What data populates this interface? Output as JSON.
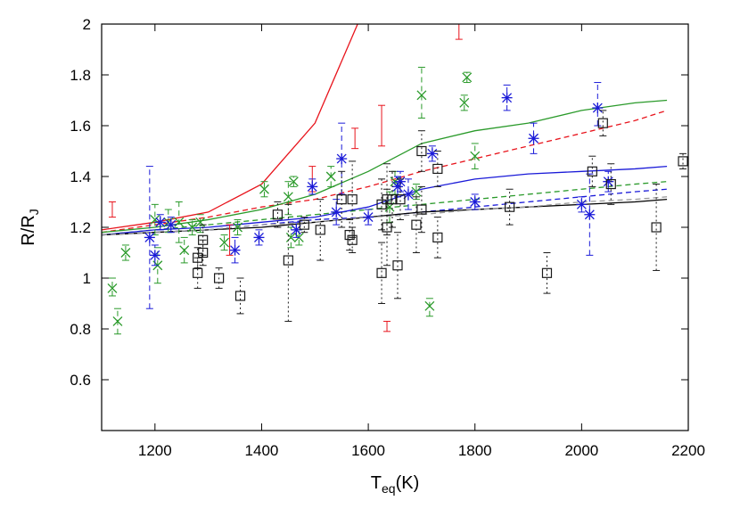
{
  "chart_data": {
    "type": "scatter",
    "xlabel": "T",
    "xlabel_sub": "eq",
    "xlabel_suffix": "(K)",
    "ylabel": "R/R",
    "ylabel_sub": "J",
    "xlim": [
      1100,
      2200
    ],
    "ylim": [
      0.4,
      2.0
    ],
    "xticks": [
      1200,
      1400,
      1600,
      1800,
      2000,
      2200
    ],
    "yticks": [
      0.6,
      0.8,
      1,
      1.2,
      1.4,
      1.6,
      1.8,
      2
    ],
    "ytick_labels": [
      "0.6",
      "0.8",
      "1",
      "1.2",
      "1.4",
      "1.6",
      "1.8",
      "2"
    ],
    "series": [
      {
        "marker": "errorbar",
        "color": "#e8141c",
        "dash": "solid",
        "points": [
          {
            "x": 1120,
            "y": 1.27,
            "lo": 1.24,
            "hi": 1.3
          },
          {
            "x": 1340,
            "y": 1.15,
            "lo": 1.09,
            "hi": 1.21
          },
          {
            "x": 1495,
            "y": 1.4,
            "lo": 1.34,
            "hi": 1.44
          },
          {
            "x": 1575,
            "y": 1.55,
            "lo": 1.51,
            "hi": 1.59
          },
          {
            "x": 1625,
            "y": 1.6,
            "lo": 1.52,
            "hi": 1.68
          },
          {
            "x": 1635,
            "y": 0.81,
            "lo": 0.79,
            "hi": 0.83
          },
          {
            "x": 1770,
            "y": 1.97,
            "lo": 1.94,
            "hi": 2.0
          }
        ]
      },
      {
        "marker": "x",
        "color": "#2a9a2a",
        "dash": "dashed",
        "points": [
          {
            "x": 1120,
            "y": 0.96,
            "lo": 0.93,
            "hi": 1.0
          },
          {
            "x": 1130,
            "y": 0.83,
            "lo": 0.78,
            "hi": 0.88
          },
          {
            "x": 1145,
            "y": 1.1,
            "lo": 1.07,
            "hi": 1.13
          },
          {
            "x": 1200,
            "y": 1.23,
            "lo": 1.17,
            "hi": 1.29
          },
          {
            "x": 1205,
            "y": 1.05,
            "lo": 0.98,
            "hi": 1.12
          },
          {
            "x": 1225,
            "y": 1.22,
            "lo": 1.18,
            "hi": 1.27
          },
          {
            "x": 1245,
            "y": 1.22,
            "lo": 1.14,
            "hi": 1.3
          },
          {
            "x": 1255,
            "y": 1.11,
            "lo": 1.06,
            "hi": 1.16
          },
          {
            "x": 1270,
            "y": 1.2,
            "lo": 1.17,
            "hi": 1.23
          },
          {
            "x": 1285,
            "y": 1.22,
            "lo": 1.18,
            "hi": 1.25
          },
          {
            "x": 1330,
            "y": 1.14,
            "lo": 1.11,
            "hi": 1.17
          },
          {
            "x": 1355,
            "y": 1.2,
            "lo": 1.17,
            "hi": 1.23
          },
          {
            "x": 1405,
            "y": 1.35,
            "lo": 1.32,
            "hi": 1.38
          },
          {
            "x": 1450,
            "y": 1.32,
            "lo": 1.25,
            "hi": 1.38
          },
          {
            "x": 1455,
            "y": 1.16,
            "lo": 1.12,
            "hi": 1.2
          },
          {
            "x": 1460,
            "y": 1.38,
            "lo": 1.36,
            "hi": 1.4
          },
          {
            "x": 1470,
            "y": 1.16,
            "lo": 1.13,
            "hi": 1.19
          },
          {
            "x": 1530,
            "y": 1.4,
            "lo": 1.36,
            "hi": 1.44
          },
          {
            "x": 1640,
            "y": 1.28,
            "lo": 1.22,
            "hi": 1.34
          },
          {
            "x": 1650,
            "y": 1.38,
            "lo": 1.33,
            "hi": 1.42
          },
          {
            "x": 1700,
            "y": 1.72,
            "lo": 1.63,
            "hi": 1.83
          },
          {
            "x": 1715,
            "y": 0.89,
            "lo": 0.85,
            "hi": 0.92
          },
          {
            "x": 1690,
            "y": 1.34,
            "lo": 1.31,
            "hi": 1.37
          },
          {
            "x": 1785,
            "y": 1.79,
            "lo": 1.77,
            "hi": 1.81
          },
          {
            "x": 1780,
            "y": 1.69,
            "lo": 1.66,
            "hi": 1.72
          },
          {
            "x": 1800,
            "y": 1.48,
            "lo": 1.43,
            "hi": 1.53
          }
        ]
      },
      {
        "marker": "star",
        "color": "#1a1ad8",
        "dash": "dashed",
        "points": [
          {
            "x": 1190,
            "y": 1.16,
            "lo": 0.88,
            "hi": 1.44
          },
          {
            "x": 1200,
            "y": 1.09,
            "lo": 1.05,
            "hi": 1.13
          },
          {
            "x": 1210,
            "y": 1.22,
            "lo": 1.19,
            "hi": 1.25
          },
          {
            "x": 1230,
            "y": 1.21,
            "lo": 1.18,
            "hi": 1.24
          },
          {
            "x": 1350,
            "y": 1.11,
            "lo": 1.06,
            "hi": 1.16
          },
          {
            "x": 1395,
            "y": 1.16,
            "lo": 1.13,
            "hi": 1.19
          },
          {
            "x": 1465,
            "y": 1.19,
            "lo": 1.16,
            "hi": 1.22
          },
          {
            "x": 1495,
            "y": 1.36,
            "lo": 1.33,
            "hi": 1.39
          },
          {
            "x": 1540,
            "y": 1.26,
            "lo": 1.21,
            "hi": 1.31
          },
          {
            "x": 1550,
            "y": 1.47,
            "lo": 1.33,
            "hi": 1.61
          },
          {
            "x": 1600,
            "y": 1.24,
            "lo": 1.21,
            "hi": 1.27
          },
          {
            "x": 1655,
            "y": 1.36,
            "lo": 1.32,
            "hi": 1.4
          },
          {
            "x": 1660,
            "y": 1.38,
            "lo": 1.34,
            "hi": 1.42
          },
          {
            "x": 1675,
            "y": 1.33,
            "lo": 1.27,
            "hi": 1.39
          },
          {
            "x": 1720,
            "y": 1.49,
            "lo": 1.46,
            "hi": 1.52
          },
          {
            "x": 1800,
            "y": 1.3,
            "lo": 1.27,
            "hi": 1.33
          },
          {
            "x": 1860,
            "y": 1.71,
            "lo": 1.66,
            "hi": 1.76
          },
          {
            "x": 1910,
            "y": 1.55,
            "lo": 1.49,
            "hi": 1.61
          },
          {
            "x": 2000,
            "y": 1.29,
            "lo": 1.26,
            "hi": 1.32
          },
          {
            "x": 2015,
            "y": 1.25,
            "lo": 1.09,
            "hi": 1.41
          },
          {
            "x": 2030,
            "y": 1.67,
            "lo": 1.6,
            "hi": 1.77
          },
          {
            "x": 2050,
            "y": 1.38,
            "lo": 1.34,
            "hi": 1.42
          }
        ]
      },
      {
        "marker": "square",
        "color": "#1a1a1a",
        "dash": "dotted",
        "points": [
          {
            "x": 1280,
            "y": 1.08,
            "lo": 1.04,
            "hi": 1.12
          },
          {
            "x": 1280,
            "y": 1.02,
            "lo": 0.96,
            "hi": 1.08
          },
          {
            "x": 1290,
            "y": 1.15,
            "lo": 1.09,
            "hi": 1.21
          },
          {
            "x": 1290,
            "y": 1.1,
            "lo": 1.05,
            "hi": 1.15
          },
          {
            "x": 1320,
            "y": 1.0,
            "lo": 0.96,
            "hi": 1.04
          },
          {
            "x": 1360,
            "y": 0.93,
            "lo": 0.86,
            "hi": 1.0
          },
          {
            "x": 1430,
            "y": 1.25,
            "lo": 1.2,
            "hi": 1.3
          },
          {
            "x": 1450,
            "y": 1.07,
            "lo": 0.83,
            "hi": 1.29
          },
          {
            "x": 1480,
            "y": 1.21,
            "lo": 1.18,
            "hi": 1.24
          },
          {
            "x": 1510,
            "y": 1.19,
            "lo": 1.07,
            "hi": 1.31
          },
          {
            "x": 1550,
            "y": 1.31,
            "lo": 1.2,
            "hi": 1.42
          },
          {
            "x": 1565,
            "y": 1.17,
            "lo": 1.11,
            "hi": 1.23
          },
          {
            "x": 1570,
            "y": 1.31,
            "lo": 1.16,
            "hi": 1.46
          },
          {
            "x": 1570,
            "y": 1.15,
            "lo": 1.1,
            "hi": 1.2
          },
          {
            "x": 1625,
            "y": 1.29,
            "lo": 1.19,
            "hi": 1.39
          },
          {
            "x": 1625,
            "y": 1.02,
            "lo": 0.9,
            "hi": 1.14
          },
          {
            "x": 1635,
            "y": 1.31,
            "lo": 1.17,
            "hi": 1.45
          },
          {
            "x": 1635,
            "y": 1.2,
            "lo": 1.05,
            "hi": 1.35
          },
          {
            "x": 1645,
            "y": 1.31,
            "lo": 1.2,
            "hi": 1.42
          },
          {
            "x": 1655,
            "y": 1.05,
            "lo": 0.92,
            "hi": 1.18
          },
          {
            "x": 1660,
            "y": 1.31,
            "lo": 1.23,
            "hi": 1.39
          },
          {
            "x": 1690,
            "y": 1.21,
            "lo": 1.1,
            "hi": 1.32
          },
          {
            "x": 1700,
            "y": 1.5,
            "lo": 1.42,
            "hi": 1.58
          },
          {
            "x": 1700,
            "y": 1.27,
            "lo": 1.18,
            "hi": 1.36
          },
          {
            "x": 1730,
            "y": 1.43,
            "lo": 1.36,
            "hi": 1.5
          },
          {
            "x": 1730,
            "y": 1.16,
            "lo": 1.08,
            "hi": 1.24
          },
          {
            "x": 1865,
            "y": 1.28,
            "lo": 1.21,
            "hi": 1.35
          },
          {
            "x": 1935,
            "y": 1.02,
            "lo": 0.94,
            "hi": 1.1
          },
          {
            "x": 2020,
            "y": 1.42,
            "lo": 1.36,
            "hi": 1.48
          },
          {
            "x": 2040,
            "y": 1.61,
            "lo": 1.56,
            "hi": 1.66
          },
          {
            "x": 2055,
            "y": 1.37,
            "lo": 1.29,
            "hi": 1.45
          },
          {
            "x": 2140,
            "y": 1.2,
            "lo": 1.03,
            "hi": 1.37
          },
          {
            "x": 2190,
            "y": 1.46,
            "lo": 1.43,
            "hi": 1.49
          }
        ]
      }
    ],
    "curves": [
      {
        "color": "#e8141c",
        "dash": "solid",
        "x": [
          1100,
          1200,
          1300,
          1400,
          1500,
          1580
        ],
        "y": [
          1.19,
          1.22,
          1.26,
          1.37,
          1.61,
          2.0
        ]
      },
      {
        "color": "#e8141c",
        "dash": "dashed",
        "x": [
          1100,
          1200,
          1300,
          1400,
          1500,
          1600,
          1700,
          1800,
          1900,
          2000,
          2100,
          2160
        ],
        "y": [
          1.18,
          1.21,
          1.24,
          1.28,
          1.31,
          1.36,
          1.42,
          1.47,
          1.52,
          1.57,
          1.62,
          1.66
        ]
      },
      {
        "color": "#2a9a2a",
        "dash": "solid",
        "x": [
          1100,
          1200,
          1300,
          1400,
          1500,
          1600,
          1700,
          1800,
          1900,
          2000,
          2100,
          2160
        ],
        "y": [
          1.18,
          1.2,
          1.23,
          1.27,
          1.33,
          1.42,
          1.53,
          1.58,
          1.61,
          1.66,
          1.69,
          1.7
        ]
      },
      {
        "color": "#2a9a2a",
        "dash": "dashed",
        "x": [
          1100,
          1200,
          1300,
          1400,
          1500,
          1600,
          1700,
          1800,
          1900,
          2000,
          2100,
          2160
        ],
        "y": [
          1.17,
          1.19,
          1.21,
          1.23,
          1.25,
          1.27,
          1.29,
          1.31,
          1.33,
          1.35,
          1.37,
          1.38
        ]
      },
      {
        "color": "#1a1ad8",
        "dash": "solid",
        "x": [
          1100,
          1200,
          1300,
          1400,
          1500,
          1600,
          1700,
          1800,
          1900,
          2000,
          2100,
          2160
        ],
        "y": [
          1.17,
          1.19,
          1.2,
          1.22,
          1.24,
          1.28,
          1.35,
          1.39,
          1.41,
          1.42,
          1.43,
          1.44
        ]
      },
      {
        "color": "#1a1ad8",
        "dash": "dashed",
        "x": [
          1100,
          1200,
          1300,
          1400,
          1500,
          1600,
          1700,
          1800,
          1900,
          2000,
          2100,
          2160
        ],
        "y": [
          1.17,
          1.18,
          1.19,
          1.21,
          1.23,
          1.24,
          1.26,
          1.28,
          1.3,
          1.32,
          1.34,
          1.35
        ]
      },
      {
        "color": "#000000",
        "dash": "solid",
        "x": [
          1100,
          1200,
          1300,
          1400,
          1500,
          1600,
          1700,
          1800,
          1900,
          2000,
          2100,
          2160
        ],
        "y": [
          1.17,
          1.18,
          1.19,
          1.2,
          1.22,
          1.24,
          1.26,
          1.27,
          1.28,
          1.29,
          1.3,
          1.31
        ]
      },
      {
        "color": "#999999",
        "dash": "dashed",
        "x": [
          1100,
          1200,
          1300,
          1400,
          1500,
          1600,
          1700,
          1800,
          1900,
          2000,
          2100,
          2160
        ],
        "y": [
          1.17,
          1.18,
          1.19,
          1.21,
          1.22,
          1.24,
          1.25,
          1.27,
          1.28,
          1.3,
          1.31,
          1.32
        ]
      }
    ]
  }
}
